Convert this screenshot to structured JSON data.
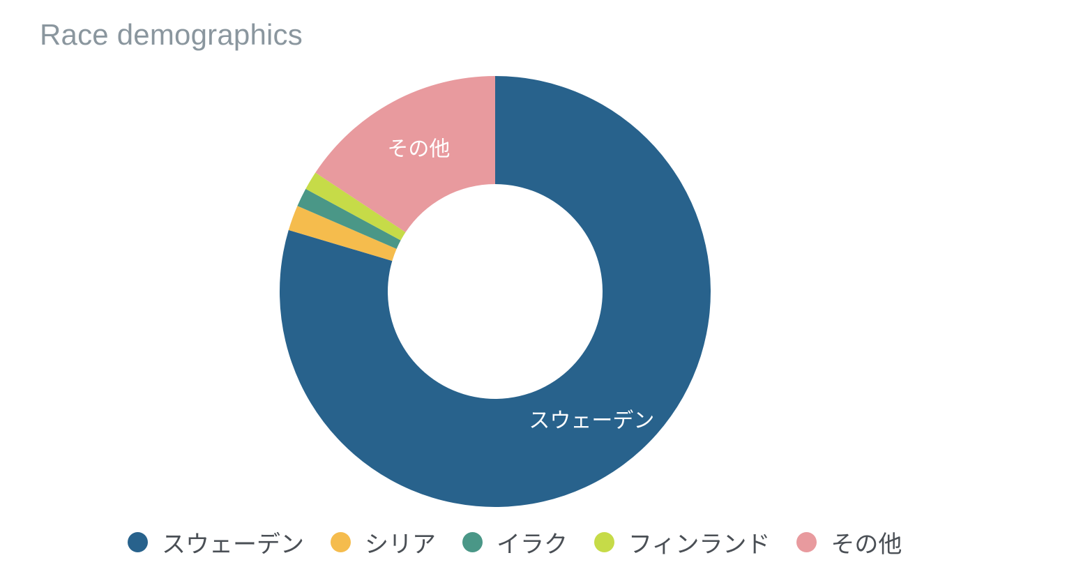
{
  "chart_data": {
    "type": "pie",
    "variant": "donut",
    "title": "Race demographics",
    "legend_position": "bottom",
    "categories": [
      "スウェーデン",
      "シリア",
      "イラク",
      "フィンランド",
      "その他"
    ],
    "values": [
      79.6,
      1.9,
      1.4,
      1.4,
      15.7
    ],
    "colors": [
      "#28628c",
      "#f5bc4d",
      "#4a9787",
      "#c6db48",
      "#e89a9e"
    ],
    "slice_labels": [
      "スウェーデン",
      "",
      "",
      "",
      "その他"
    ]
  }
}
